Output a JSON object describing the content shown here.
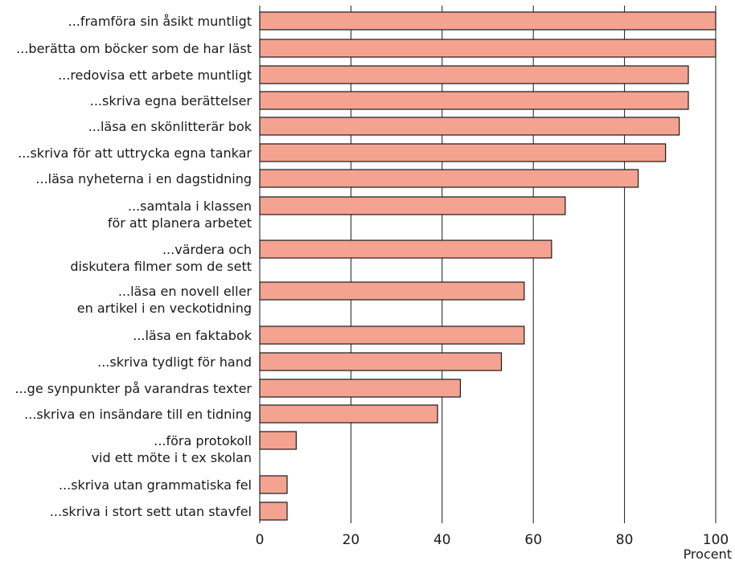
{
  "chart_data": {
    "type": "bar",
    "orientation": "horizontal",
    "title": "",
    "xlabel": "Procent",
    "ylabel": "",
    "xlim": [
      0,
      100
    ],
    "x_ticks": [
      "0",
      "20",
      "40",
      "60",
      "80",
      "100"
    ],
    "grid": "vertical",
    "bar_color": "#f4a391",
    "bar_stroke": "#1a1a1a",
    "categories": [
      [
        "...framföra sin åsikt muntligt"
      ],
      [
        "...berätta om böcker som de har läst"
      ],
      [
        "...redovisa ett arbete muntligt"
      ],
      [
        "...skriva egna berättelser"
      ],
      [
        "...läsa en skönlitterär bok"
      ],
      [
        "...skriva för att uttrycka egna tankar"
      ],
      [
        "...läsa nyheterna i en dagstidning"
      ],
      [
        "...samtala i klassen",
        "för att planera arbetet"
      ],
      [
        "...värdera och",
        "diskutera filmer som de sett"
      ],
      [
        "...läsa en novell eller",
        "en artikel i en veckotidning"
      ],
      [
        "...läsa en faktabok"
      ],
      [
        "...skriva tydligt för hand"
      ],
      [
        "...ge synpunkter på varandras texter"
      ],
      [
        "...skriva en insändare till en tidning"
      ],
      [
        "...föra protokoll",
        "vid ett möte i t ex skolan"
      ],
      [
        "...skriva utan grammatiska fel"
      ],
      [
        "...skriva i stort sett utan stavfel"
      ]
    ],
    "values": [
      100,
      100,
      94,
      94,
      92,
      89,
      83,
      67,
      64,
      58,
      58,
      53,
      44,
      39,
      8,
      6,
      6
    ]
  }
}
